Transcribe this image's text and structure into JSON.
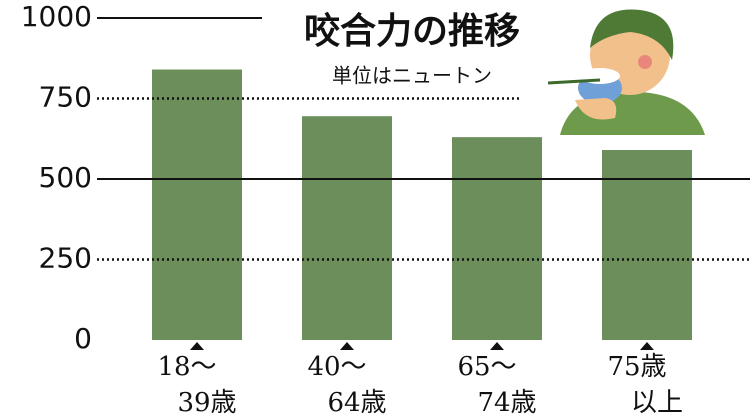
{
  "chart_data": {
    "type": "bar",
    "title": "咬合力の推移",
    "subtitle": "単位はニュートン",
    "categories": [
      [
        "18〜",
        "39歳"
      ],
      [
        "40〜",
        "64歳"
      ],
      [
        "65〜",
        "74歳"
      ],
      [
        "75歳",
        "以上"
      ]
    ],
    "values": [
      840,
      695,
      630,
      590
    ],
    "color": "#6b8e5a",
    "ylim": [
      0,
      1000
    ],
    "yticks": [
      0,
      250,
      500,
      750,
      1000
    ],
    "grid": true
  }
}
